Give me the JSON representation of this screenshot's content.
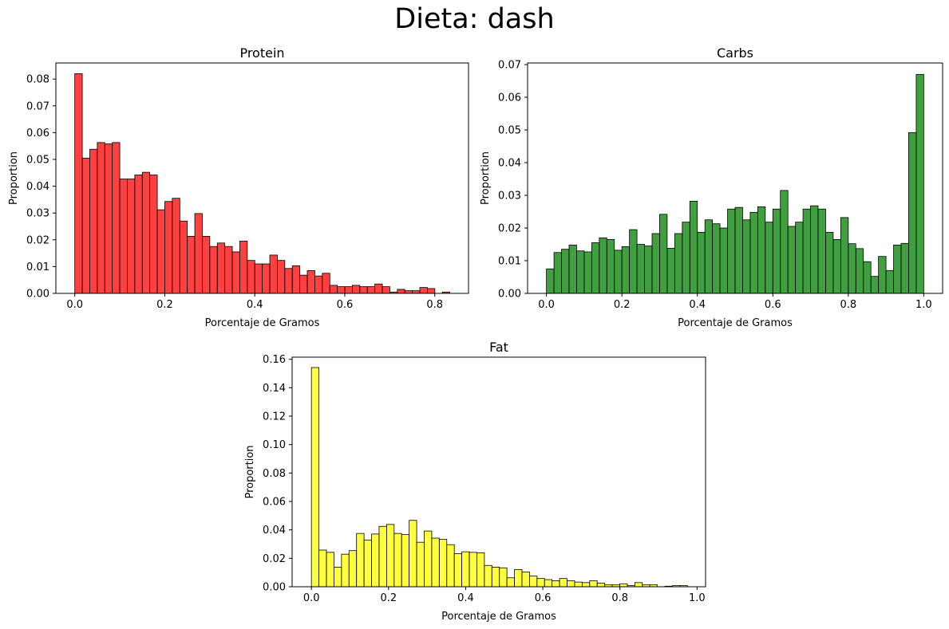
{
  "figure": {
    "title": "Dieta: dash"
  },
  "chart_data": [
    {
      "type": "bar",
      "subtype": "histogram",
      "title": "Protein",
      "xlabel": "Porcentaje de Gramos",
      "ylabel": "Proportion",
      "color": "#ff0000",
      "bar_alpha": 0.75,
      "edge_color": "#000000",
      "bin_width": 0.01667,
      "bin_start": 0.0,
      "xlim": [
        -0.042,
        0.875
      ],
      "ylim": [
        0,
        0.086
      ],
      "xticks": [
        0.0,
        0.2,
        0.4,
        0.6,
        0.8
      ],
      "xtick_labels": [
        "0.0",
        "0.2",
        "0.4",
        "0.6",
        "0.8"
      ],
      "yticks": [
        0.0,
        0.01,
        0.02,
        0.03,
        0.04,
        0.05,
        0.06,
        0.07,
        0.08
      ],
      "ytick_labels": [
        "0.00",
        "0.01",
        "0.02",
        "0.03",
        "0.04",
        "0.05",
        "0.06",
        "0.07",
        "0.08"
      ],
      "values": [
        0.082,
        0.0505,
        0.0538,
        0.0563,
        0.0558,
        0.0563,
        0.0427,
        0.0427,
        0.0442,
        0.0452,
        0.0442,
        0.0312,
        0.0343,
        0.0355,
        0.027,
        0.0213,
        0.0298,
        0.0213,
        0.0175,
        0.0188,
        0.0175,
        0.0155,
        0.0195,
        0.0123,
        0.011,
        0.011,
        0.0143,
        0.0123,
        0.0093,
        0.0103,
        0.0068,
        0.0085,
        0.0065,
        0.0075,
        0.003,
        0.0025,
        0.0025,
        0.003,
        0.0025,
        0.0025,
        0.0035,
        0.0025,
        0.0005,
        0.0015,
        0.001,
        0.001,
        0.0022,
        0.0018,
        0.0,
        0.0005
      ]
    },
    {
      "type": "bar",
      "subtype": "histogram",
      "title": "Carbs",
      "xlabel": "Porcentaje de Gramos",
      "ylabel": "Proportion",
      "color": "#008000",
      "bar_alpha": 0.75,
      "edge_color": "#000000",
      "bin_width": 0.02,
      "bin_start": 0.0,
      "xlim": [
        -0.05,
        1.05
      ],
      "ylim": [
        0,
        0.0705
      ],
      "xticks": [
        0.0,
        0.2,
        0.4,
        0.6,
        0.8,
        1.0
      ],
      "xtick_labels": [
        "0.0",
        "0.2",
        "0.4",
        "0.6",
        "0.8",
        "1.0"
      ],
      "yticks": [
        0.0,
        0.01,
        0.02,
        0.03,
        0.04,
        0.05,
        0.06,
        0.07
      ],
      "ytick_labels": [
        "0.00",
        "0.01",
        "0.02",
        "0.03",
        "0.04",
        "0.05",
        "0.06",
        "0.07"
      ],
      "values": [
        0.0075,
        0.0125,
        0.0135,
        0.0148,
        0.013,
        0.0127,
        0.0155,
        0.017,
        0.0165,
        0.0132,
        0.0143,
        0.0195,
        0.015,
        0.0145,
        0.0183,
        0.0242,
        0.0138,
        0.0183,
        0.0218,
        0.0282,
        0.0187,
        0.0225,
        0.0213,
        0.02,
        0.0258,
        0.0263,
        0.0225,
        0.0248,
        0.0265,
        0.0218,
        0.0258,
        0.0315,
        0.0205,
        0.0218,
        0.0258,
        0.0268,
        0.0258,
        0.0187,
        0.0165,
        0.0232,
        0.0152,
        0.0137,
        0.0097,
        0.0052,
        0.0113,
        0.007,
        0.0148,
        0.0153,
        0.0492,
        0.067
      ]
    },
    {
      "type": "bar",
      "subtype": "histogram",
      "title": "Fat",
      "xlabel": "Porcentaje de Gramos",
      "ylabel": "Proportion",
      "color": "#ffff00",
      "bar_alpha": 0.75,
      "edge_color": "#000000",
      "bin_width": 0.0195,
      "bin_start": 0.0,
      "xlim": [
        -0.05,
        1.022
      ],
      "ylim": [
        0,
        0.1615
      ],
      "xticks": [
        0.0,
        0.2,
        0.4,
        0.6,
        0.8,
        1.0
      ],
      "xtick_labels": [
        "0.0",
        "0.2",
        "0.4",
        "0.6",
        "0.8",
        "1.0"
      ],
      "yticks": [
        0.0,
        0.02,
        0.04,
        0.06,
        0.08,
        0.1,
        0.12,
        0.14,
        0.16
      ],
      "ytick_labels": [
        "0.00",
        "0.02",
        "0.04",
        "0.06",
        "0.08",
        "0.10",
        "0.12",
        "0.14",
        "0.16"
      ],
      "values": [
        0.1542,
        0.0258,
        0.0242,
        0.0138,
        0.0229,
        0.0254,
        0.0375,
        0.0329,
        0.0371,
        0.0425,
        0.0438,
        0.0375,
        0.0367,
        0.0467,
        0.0313,
        0.0392,
        0.0342,
        0.0333,
        0.0296,
        0.0233,
        0.0246,
        0.0242,
        0.0238,
        0.015,
        0.0138,
        0.0133,
        0.0063,
        0.0121,
        0.0104,
        0.0075,
        0.0058,
        0.005,
        0.0042,
        0.0058,
        0.0042,
        0.0033,
        0.0029,
        0.0042,
        0.0025,
        0.0013,
        0.0013,
        0.0021,
        0.0008,
        0.0029,
        0.0013,
        0.0013,
        0.0,
        0.0004,
        0.0008,
        0.0008
      ]
    }
  ]
}
